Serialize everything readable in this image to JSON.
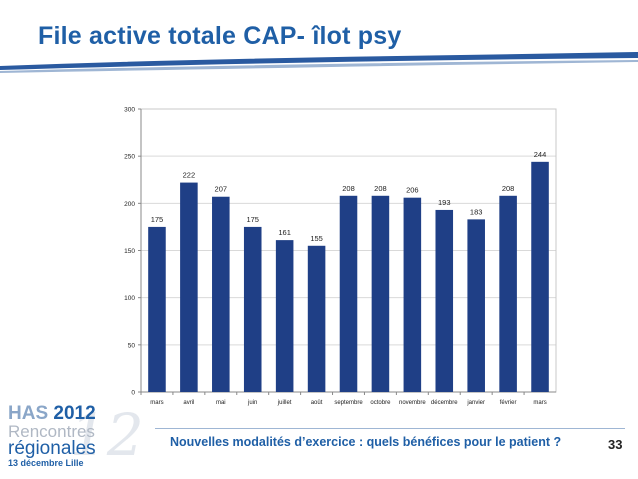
{
  "slide": {
    "title": "File active totale CAP- îlot psy",
    "footer_text": "Nouvelles modalités d’exercice : quels bénéfices pour le patient ?",
    "page_number": "33",
    "logo": {
      "has": "HAS",
      "year": "2012",
      "rencontres": "Rencontres",
      "regionales": "régionales",
      "date": "13 décembre Lille",
      "big_number": "12"
    },
    "colors": {
      "title": "#1f5fa6",
      "bar": "#1f3f86",
      "swoosh": "#2a5aa0"
    }
  },
  "chart_data": {
    "type": "bar",
    "title": "",
    "xlabel": "",
    "ylabel": "",
    "categories": [
      "mars",
      "avril",
      "mai",
      "juin",
      "juillet",
      "août",
      "septembre",
      "octobre",
      "novembre",
      "décembre",
      "janvier",
      "février",
      "mars"
    ],
    "values": [
      175,
      222,
      207,
      175,
      161,
      155,
      208,
      208,
      206,
      193,
      183,
      208,
      244
    ],
    "value_labels": [
      "175",
      "222",
      "207",
      "175",
      "161",
      "155",
      "208",
      "208",
      "206",
      "193",
      "183",
      "208",
      "244"
    ],
    "ylim": [
      0,
      300
    ],
    "yticks": [
      0,
      50,
      100,
      150,
      200,
      250,
      300
    ],
    "ytick_labels": [
      "0",
      "50",
      "100",
      "150",
      "200",
      "250",
      "300"
    ],
    "grid": true,
    "legend": "none"
  }
}
